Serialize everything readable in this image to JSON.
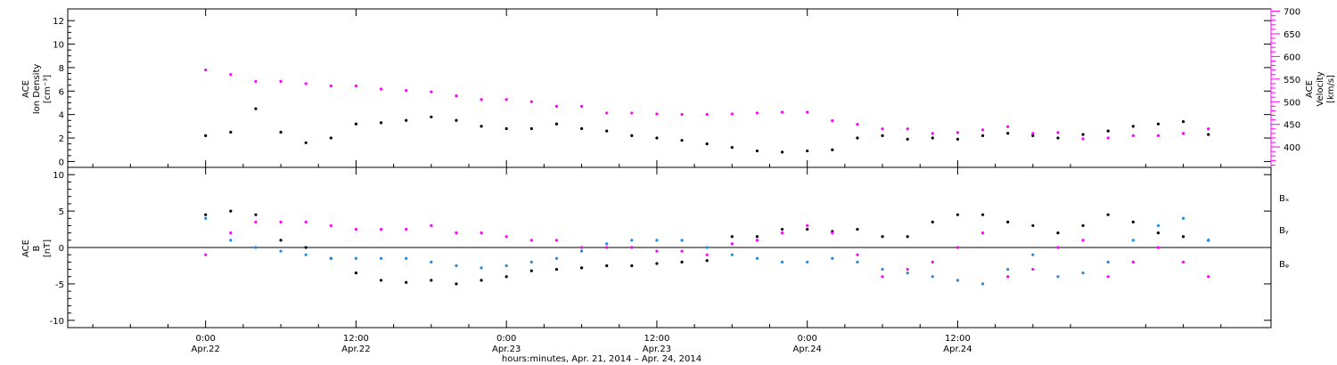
{
  "colors": {
    "black": "#000000",
    "magenta": "#ff00ff",
    "blue": "#1e8ce6"
  },
  "chart_data": [
    {
      "type": "scatter",
      "panel": "density-velocity",
      "ylabel_left": [
        "ACE",
        "Ion Density",
        "[cm⁻³]"
      ],
      "ylabel_right": [
        "ACE",
        "Velocity",
        "[km/s]"
      ],
      "ylim_left": [
        -0.5,
        13
      ],
      "yticks_left": [
        "0",
        "2",
        "4",
        "6",
        "8",
        "10",
        "12"
      ],
      "ylim_right": [
        355,
        705
      ],
      "yticks_right": [
        "400",
        "450",
        "500",
        "550",
        "600",
        "650",
        "700"
      ],
      "series": [
        {
          "axis": "left",
          "color": "#000000",
          "x": [
            0,
            2,
            4,
            6,
            8,
            10,
            12,
            14,
            16,
            18,
            20,
            22,
            24,
            26,
            28,
            30,
            32,
            34,
            36,
            38,
            40,
            42,
            44,
            46,
            48,
            50,
            52,
            54,
            56,
            58,
            60,
            62,
            64,
            66,
            68,
            70,
            72,
            74,
            76,
            78,
            80
          ],
          "y": [
            2.2,
            2.5,
            4.5,
            2.5,
            1.6,
            2.0,
            3.2,
            3.3,
            3.5,
            3.8,
            3.5,
            3.0,
            2.8,
            2.8,
            3.2,
            2.8,
            2.6,
            2.2,
            2.0,
            1.8,
            1.5,
            1.2,
            0.9,
            0.8,
            0.9,
            1.0,
            2.0,
            2.2,
            1.9,
            2.0,
            1.9,
            2.2,
            2.4,
            2.2,
            2.0,
            2.3,
            2.6,
            3.0,
            3.2,
            3.4,
            2.3
          ]
        },
        {
          "axis": "right",
          "color": "#ff00ff",
          "x": [
            0,
            2,
            4,
            6,
            8,
            10,
            12,
            14,
            16,
            18,
            20,
            22,
            24,
            26,
            28,
            30,
            32,
            34,
            36,
            38,
            40,
            42,
            44,
            46,
            48,
            50,
            52,
            54,
            56,
            58,
            60,
            62,
            64,
            66,
            68,
            70,
            72,
            74,
            76,
            78,
            80
          ],
          "y": [
            570,
            560,
            545,
            545,
            540,
            535,
            535,
            528,
            525,
            522,
            513,
            505,
            505,
            500,
            490,
            490,
            475,
            475,
            473,
            472,
            472,
            473,
            475,
            477,
            477,
            458,
            450,
            440,
            440,
            430,
            432,
            438,
            445,
            430,
            432,
            418,
            420,
            425,
            425,
            430,
            440
          ]
        }
      ]
    },
    {
      "type": "scatter",
      "panel": "magnetic-field",
      "ylabel_left": [
        "ACE",
        "B",
        "[nT]"
      ],
      "ylim": [
        -11,
        11
      ],
      "yticks": [
        "-10",
        "-5",
        "0",
        "5",
        "10"
      ],
      "legend": [
        "Bₓ",
        "Bᵧ",
        "Bᵩ"
      ],
      "legend_placement": "right",
      "series": [
        {
          "name": "Bₓ",
          "color": "#000000",
          "x": [
            0,
            2,
            4,
            6,
            8,
            10,
            12,
            14,
            16,
            18,
            20,
            22,
            24,
            26,
            28,
            30,
            32,
            34,
            36,
            38,
            40,
            42,
            44,
            46,
            48,
            50,
            52,
            54,
            56,
            58,
            60,
            62,
            64,
            66,
            68,
            70,
            72,
            74,
            76,
            78,
            80
          ],
          "y": [
            4.5,
            5,
            4.5,
            1,
            0,
            -1.5,
            -3.5,
            -4.5,
            -4.8,
            -4.5,
            -5,
            -4.5,
            -4,
            -3.2,
            -3,
            -2.8,
            -2.5,
            -2.5,
            -2.2,
            -2,
            -1.8,
            1.5,
            1.5,
            2.5,
            2.5,
            2.2,
            2.5,
            1.5,
            1.5,
            3.5,
            4.5,
            4.5,
            3.5,
            3,
            2,
            3,
            4.5,
            3.5,
            2,
            1.5,
            1
          ]
        },
        {
          "name": "Bᵧ",
          "color": "#1e8ce6",
          "x": [
            0,
            2,
            4,
            6,
            8,
            10,
            12,
            14,
            16,
            18,
            20,
            22,
            24,
            26,
            28,
            30,
            32,
            34,
            36,
            38,
            40,
            42,
            44,
            46,
            48,
            50,
            52,
            54,
            56,
            58,
            60,
            62,
            64,
            66,
            68,
            70,
            72,
            74,
            76,
            78,
            80
          ],
          "y": [
            4,
            1,
            0,
            -0.5,
            -1,
            -1.5,
            -1.5,
            -1.5,
            -1.5,
            -2,
            -2.5,
            -2.8,
            -2.5,
            -2.0,
            -1.5,
            -0.5,
            0.5,
            1,
            1,
            1,
            0,
            -1,
            -1.5,
            -2,
            -2,
            -1.5,
            -2,
            -3,
            -3.5,
            -4,
            -4.5,
            -5,
            -3,
            -1,
            -4,
            -3.5,
            -2,
            1,
            3,
            4,
            1
          ]
        },
        {
          "name": "Bᵩ",
          "color": "#ff00ff",
          "x": [
            0,
            2,
            4,
            6,
            8,
            10,
            12,
            14,
            16,
            18,
            20,
            22,
            24,
            26,
            28,
            30,
            32,
            34,
            36,
            38,
            40,
            42,
            44,
            46,
            48,
            50,
            52,
            54,
            56,
            58,
            60,
            62,
            64,
            66,
            68,
            70,
            72,
            74,
            76,
            78,
            80
          ],
          "y": [
            -1,
            2,
            3.5,
            3.5,
            3.5,
            3,
            2.5,
            2.5,
            2.5,
            3,
            2,
            2,
            1.5,
            1,
            1,
            0,
            0,
            0,
            -0.5,
            -0.5,
            -1,
            0.5,
            1,
            2,
            3,
            2,
            -1,
            -4,
            -3,
            -2,
            0,
            2,
            -4,
            -3,
            0,
            1,
            -4,
            -2,
            0,
            -2,
            -4
          ]
        }
      ]
    }
  ],
  "xaxis": {
    "title": "hours:minutes, Apr. 21, 2014 – Apr. 24, 2014",
    "xlim": [
      -11,
      85
    ],
    "ticks": [
      {
        "x": 0,
        "time": "0:00",
        "date": "Apr.22"
      },
      {
        "x": 12,
        "time": "12:00",
        "date": "Apr.22"
      },
      {
        "x": 24,
        "time": "0:00",
        "date": "Apr.23"
      },
      {
        "x": 36,
        "time": "12:00",
        "date": "Apr.23"
      },
      {
        "x": 48,
        "time": "0:00",
        "date": "Apr.24"
      },
      {
        "x": 60,
        "time": "12:00",
        "date": "Apr.24"
      }
    ]
  }
}
